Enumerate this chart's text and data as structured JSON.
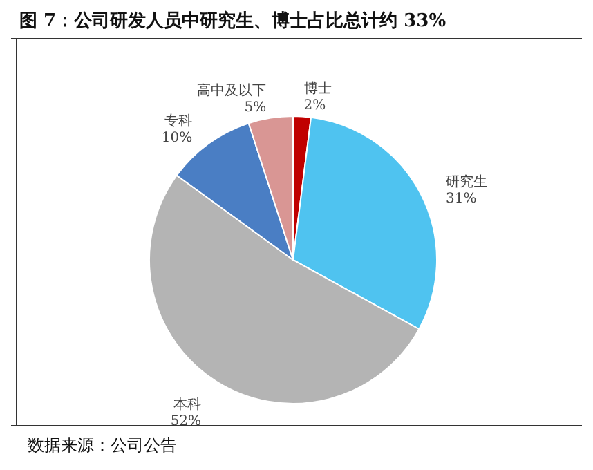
{
  "chart_data": {
    "type": "pie",
    "title": "图 7：公司研发人员中研究生、博士占比总计约 33%",
    "categories": [
      "博士",
      "研究生",
      "本科",
      "专科",
      "高中及以下"
    ],
    "values": [
      2,
      31,
      52,
      10,
      5
    ],
    "value_labels": [
      "2%",
      "31%",
      "52%",
      "10%",
      "5%"
    ],
    "colors": [
      "#c00000",
      "#4fc3f0",
      "#b4b4b4",
      "#4a7ec4",
      "#d99694"
    ],
    "annotations": [
      "数据来源：公司公告"
    ]
  }
}
